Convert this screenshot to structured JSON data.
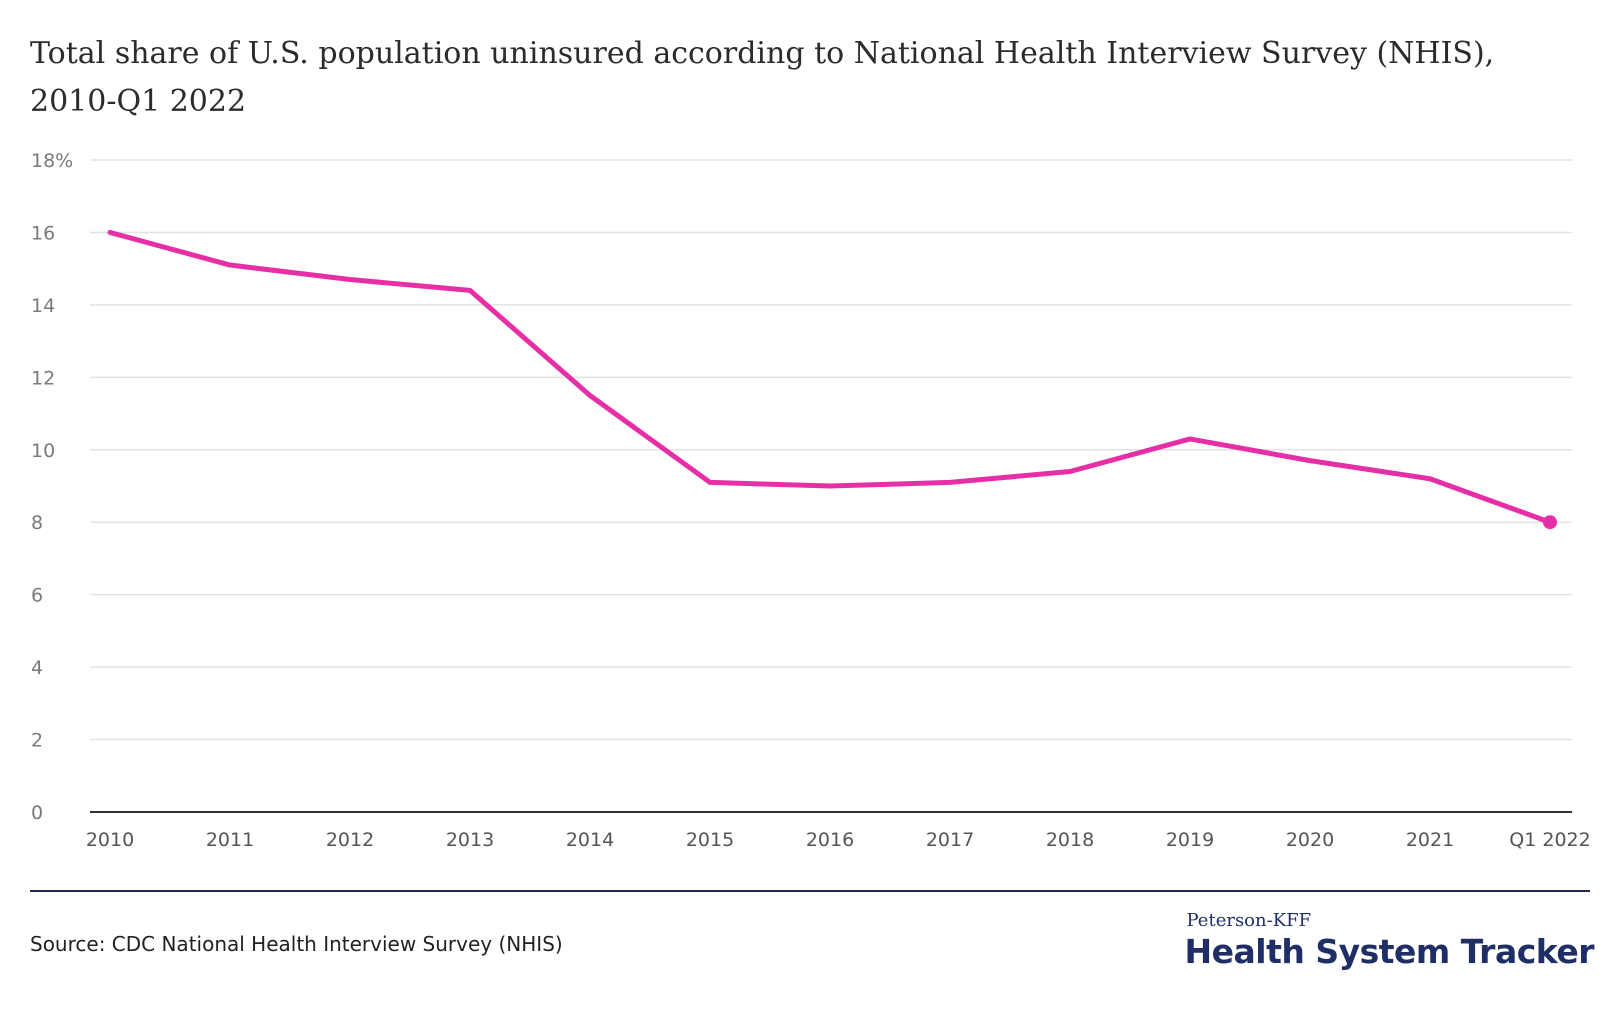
{
  "header": {
    "title": "Total share of U.S. population uninsured according to National Health Interview Survey (NHIS), 2010-Q1 2022"
  },
  "footer": {
    "source": "Source: CDC National Health Interview Survey (NHIS)",
    "logo_top": "Peterson-KFF",
    "logo_main": "Health System Tracker"
  },
  "colors": {
    "line": "#e62fa7",
    "grid": "#e3e3e3",
    "axis": "#333333"
  },
  "chart_data": {
    "type": "line",
    "title": "Total share of U.S. population uninsured according to National Health Interview Survey (NHIS), 2010-Q1 2022",
    "xlabel": "",
    "ylabel": "",
    "categories": [
      "2010",
      "2011",
      "2012",
      "2013",
      "2014",
      "2015",
      "2016",
      "2017",
      "2018",
      "2019",
      "2020",
      "2021",
      "Q1 2022"
    ],
    "series": [
      {
        "name": "Uninsured share",
        "values": [
          16.0,
          15.1,
          14.7,
          14.4,
          11.5,
          9.1,
          9.0,
          9.1,
          9.4,
          10.3,
          9.7,
          9.2,
          8.0
        ]
      }
    ],
    "ylim": [
      0,
      18
    ],
    "yticks": [
      0,
      2,
      4,
      6,
      8,
      10,
      12,
      14,
      16,
      18
    ],
    "ytick_labels": [
      "0",
      "2",
      "4",
      "6",
      "8",
      "10",
      "12",
      "14",
      "16",
      "18%"
    ],
    "grid": true,
    "legend": "none",
    "end_marker": true
  }
}
